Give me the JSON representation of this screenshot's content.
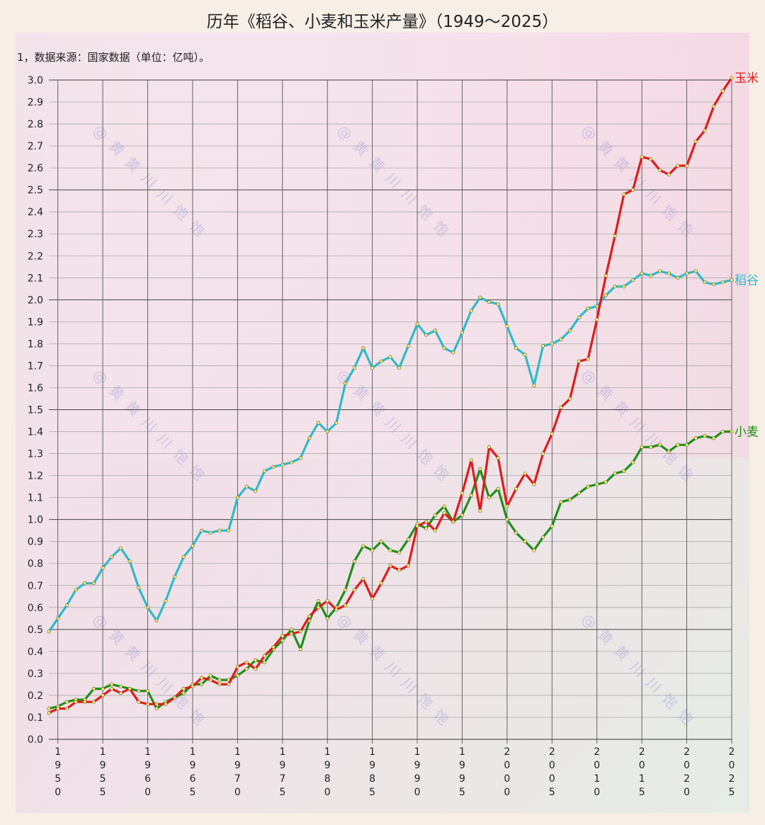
{
  "chart_data": {
    "type": "line",
    "title": "历年《稻谷、小麦和玉米产量》（1949～2025）",
    "note": "1，数据来源：国家数据（单位：亿吨）。",
    "watermark": "@黄黄川川饱饱",
    "xlim": [
      1949,
      2025
    ],
    "ylim": [
      0,
      3.0
    ],
    "x_ticks": [
      "1950",
      "1955",
      "1960",
      "1965",
      "1970",
      "1975",
      "1980",
      "1985",
      "1990",
      "1995",
      "2000",
      "2005",
      "2010",
      "2015",
      "2020",
      "2025"
    ],
    "y_ticks": [
      "0.0",
      "0.1",
      "0.2",
      "0.3",
      "0.4",
      "0.5",
      "0.6",
      "0.7",
      "0.8",
      "0.9",
      "1.0",
      "1.1",
      "1.2",
      "1.3",
      "1.4",
      "1.5",
      "1.6",
      "1.7",
      "1.8",
      "1.9",
      "2.0",
      "2.1",
      "2.2",
      "2.3",
      "2.4",
      "2.5",
      "2.6",
      "2.7",
      "2.8",
      "2.9",
      "3.0"
    ],
    "grid": true,
    "series": [
      {
        "name": "稻谷",
        "color": "#2bbbc9",
        "x": [
          1949,
          1950,
          1951,
          1952,
          1953,
          1954,
          1955,
          1956,
          1957,
          1958,
          1959,
          1960,
          1961,
          1962,
          1963,
          1964,
          1965,
          1966,
          1967,
          1968,
          1969,
          1970,
          1971,
          1972,
          1973,
          1974,
          1975,
          1976,
          1977,
          1978,
          1979,
          1980,
          1981,
          1982,
          1983,
          1984,
          1985,
          1986,
          1987,
          1988,
          1989,
          1990,
          1991,
          1992,
          1993,
          1994,
          1995,
          1996,
          1997,
          1998,
          1999,
          2000,
          2001,
          2002,
          2003,
          2004,
          2005,
          2006,
          2007,
          2008,
          2009,
          2010,
          2011,
          2012,
          2013,
          2014,
          2015,
          2016,
          2017,
          2018,
          2019,
          2020,
          2021,
          2022,
          2023,
          2024,
          2025
        ],
        "values": [
          0.49,
          0.55,
          0.61,
          0.68,
          0.71,
          0.71,
          0.78,
          0.83,
          0.87,
          0.81,
          0.69,
          0.6,
          0.54,
          0.63,
          0.74,
          0.83,
          0.88,
          0.95,
          0.94,
          0.95,
          0.95,
          1.1,
          1.15,
          1.13,
          1.22,
          1.24,
          1.25,
          1.26,
          1.28,
          1.37,
          1.44,
          1.4,
          1.44,
          1.62,
          1.69,
          1.78,
          1.69,
          1.72,
          1.74,
          1.69,
          1.79,
          1.89,
          1.84,
          1.86,
          1.78,
          1.76,
          1.85,
          1.95,
          2.01,
          1.99,
          1.98,
          1.88,
          1.78,
          1.75,
          1.61,
          1.79,
          1.8,
          1.82,
          1.86,
          1.92,
          1.96,
          1.97,
          2.02,
          2.06,
          2.06,
          2.09,
          2.12,
          2.11,
          2.13,
          2.12,
          2.1,
          2.12,
          2.13,
          2.08,
          2.07,
          2.08,
          2.09
        ]
      },
      {
        "name": "小麦",
        "color": "#1e8f1a",
        "x": [
          1949,
          1950,
          1951,
          1952,
          1953,
          1954,
          1955,
          1956,
          1957,
          1958,
          1959,
          1960,
          1961,
          1962,
          1963,
          1964,
          1965,
          1966,
          1967,
          1968,
          1969,
          1970,
          1971,
          1972,
          1973,
          1974,
          1975,
          1976,
          1977,
          1978,
          1979,
          1980,
          1981,
          1982,
          1983,
          1984,
          1985,
          1986,
          1987,
          1988,
          1989,
          1990,
          1991,
          1992,
          1993,
          1994,
          1995,
          1996,
          1997,
          1998,
          1999,
          2000,
          2001,
          2002,
          2003,
          2004,
          2005,
          2006,
          2007,
          2008,
          2009,
          2010,
          2011,
          2012,
          2013,
          2014,
          2015,
          2016,
          2017,
          2018,
          2019,
          2020,
          2021,
          2022,
          2023,
          2024,
          2025
        ],
        "values": [
          0.14,
          0.15,
          0.17,
          0.18,
          0.18,
          0.23,
          0.23,
          0.25,
          0.24,
          0.23,
          0.22,
          0.22,
          0.14,
          0.17,
          0.19,
          0.21,
          0.25,
          0.25,
          0.29,
          0.27,
          0.27,
          0.29,
          0.32,
          0.36,
          0.35,
          0.41,
          0.45,
          0.5,
          0.41,
          0.54,
          0.63,
          0.55,
          0.6,
          0.68,
          0.81,
          0.88,
          0.86,
          0.9,
          0.86,
          0.85,
          0.91,
          0.98,
          0.96,
          1.02,
          1.06,
          0.99,
          1.02,
          1.11,
          1.23,
          1.1,
          1.14,
          1.0,
          0.94,
          0.9,
          0.86,
          0.92,
          0.97,
          1.08,
          1.09,
          1.12,
          1.15,
          1.16,
          1.17,
          1.21,
          1.22,
          1.26,
          1.33,
          1.33,
          1.34,
          1.31,
          1.34,
          1.34,
          1.37,
          1.38,
          1.37,
          1.4,
          1.4
        ]
      },
      {
        "name": "玉米",
        "color": "#e31a1c",
        "x": [
          1949,
          1950,
          1951,
          1952,
          1953,
          1954,
          1955,
          1956,
          1957,
          1958,
          1959,
          1960,
          1961,
          1962,
          1963,
          1964,
          1965,
          1966,
          1967,
          1968,
          1969,
          1970,
          1971,
          1972,
          1973,
          1974,
          1975,
          1976,
          1977,
          1978,
          1979,
          1980,
          1981,
          1982,
          1983,
          1984,
          1985,
          1986,
          1987,
          1988,
          1989,
          1990,
          1991,
          1992,
          1993,
          1994,
          1995,
          1996,
          1997,
          1998,
          1999,
          2000,
          2001,
          2002,
          2003,
          2004,
          2005,
          2006,
          2007,
          2008,
          2009,
          2010,
          2011,
          2012,
          2013,
          2014,
          2015,
          2016,
          2017,
          2018,
          2019,
          2020,
          2021,
          2022,
          2023,
          2024,
          2025
        ],
        "values": [
          0.12,
          0.14,
          0.14,
          0.17,
          0.17,
          0.17,
          0.2,
          0.23,
          0.21,
          0.23,
          0.17,
          0.16,
          0.16,
          0.16,
          0.19,
          0.23,
          0.24,
          0.28,
          0.27,
          0.25,
          0.25,
          0.33,
          0.35,
          0.32,
          0.38,
          0.42,
          0.47,
          0.48,
          0.49,
          0.56,
          0.6,
          0.63,
          0.59,
          0.61,
          0.68,
          0.73,
          0.64,
          0.71,
          0.79,
          0.77,
          0.79,
          0.97,
          0.99,
          0.95,
          1.03,
          0.99,
          1.12,
          1.27,
          1.04,
          1.33,
          1.28,
          1.06,
          1.14,
          1.21,
          1.16,
          1.3,
          1.39,
          1.51,
          1.55,
          1.72,
          1.73,
          1.91,
          2.11,
          2.29,
          2.48,
          2.5,
          2.65,
          2.64,
          2.59,
          2.57,
          2.61,
          2.61,
          2.72,
          2.77,
          2.88,
          2.95,
          3.01
        ]
      }
    ]
  }
}
